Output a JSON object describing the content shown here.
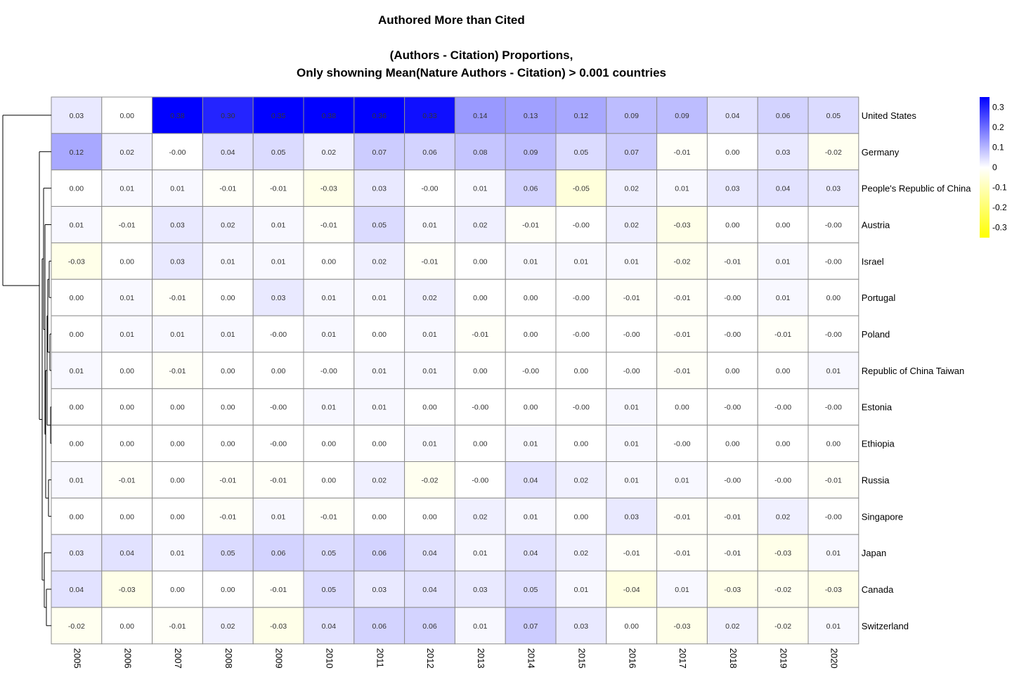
{
  "titles": {
    "main": "Authored More than Cited",
    "subtitle_line1": "(Authors - Citation) Proportions,",
    "subtitle_line2": "Only showning Mean(Nature Authors - Citation) > 0.001 countries"
  },
  "colors": {
    "high": "#0000ff",
    "mid": "#ffffff",
    "low": "#ffff00",
    "grid": "#8c8c8c",
    "dendrogram": "#000000"
  },
  "chart_data": {
    "type": "heatmap",
    "title": "Authored More than Cited",
    "subtitle": "(Authors - Citation) Proportions, Only showning Mean(Nature Authors - Citation) > 0.001 countries",
    "columns": [
      "2005",
      "2006",
      "2007",
      "2008",
      "2009",
      "2010",
      "2011",
      "2012",
      "2013",
      "2014",
      "2015",
      "2016",
      "2017",
      "2018",
      "2019",
      "2020"
    ],
    "rows": [
      "United States",
      "Germany",
      "People's Republic of China",
      "Austria",
      "Israel",
      "Portugal",
      "Poland",
      "Republic of China Taiwan",
      "Estonia",
      "Ethiopia",
      "Russia",
      "Singapore",
      "Japan",
      "Canada",
      "Switzerland"
    ],
    "values": [
      [
        0.03,
        0.0,
        0.38,
        0.3,
        0.35,
        0.38,
        0.36,
        0.33,
        0.14,
        0.13,
        0.12,
        0.09,
        0.09,
        0.04,
        0.06,
        0.05
      ],
      [
        0.12,
        0.02,
        -0.0,
        0.04,
        0.05,
        0.02,
        0.07,
        0.06,
        0.08,
        0.09,
        0.05,
        0.07,
        -0.01,
        0.0,
        0.03,
        -0.02
      ],
      [
        0.0,
        0.01,
        0.01,
        -0.01,
        -0.01,
        -0.03,
        0.03,
        -0.0,
        0.01,
        0.06,
        -0.05,
        0.02,
        0.01,
        0.03,
        0.04,
        0.03
      ],
      [
        0.01,
        -0.01,
        0.03,
        0.02,
        0.01,
        -0.01,
        0.05,
        0.01,
        0.02,
        -0.01,
        -0.0,
        0.02,
        -0.03,
        0.0,
        0.0,
        -0.0
      ],
      [
        -0.03,
        0.0,
        0.03,
        0.01,
        0.01,
        0.0,
        0.02,
        -0.01,
        0.0,
        0.01,
        0.01,
        0.01,
        -0.02,
        -0.01,
        0.01,
        -0.0
      ],
      [
        0.0,
        0.01,
        -0.01,
        0.0,
        0.03,
        0.01,
        0.01,
        0.02,
        0.0,
        0.0,
        -0.0,
        -0.01,
        -0.01,
        -0.0,
        0.01,
        0.0
      ],
      [
        0.0,
        0.01,
        0.01,
        0.01,
        -0.0,
        0.01,
        0.0,
        0.01,
        -0.01,
        0.0,
        -0.0,
        -0.0,
        -0.01,
        -0.0,
        -0.01,
        -0.0
      ],
      [
        0.01,
        0.0,
        -0.01,
        0.0,
        0.0,
        -0.0,
        0.01,
        0.01,
        0.0,
        -0.0,
        0.0,
        -0.0,
        -0.01,
        0.0,
        0.0,
        0.01
      ],
      [
        0.0,
        0.0,
        0.0,
        0.0,
        -0.0,
        0.01,
        0.01,
        0.0,
        -0.0,
        0.0,
        -0.0,
        0.01,
        0.0,
        -0.0,
        -0.0,
        -0.0
      ],
      [
        0.0,
        0.0,
        0.0,
        0.0,
        -0.0,
        0.0,
        0.0,
        0.01,
        0.0,
        0.01,
        0.0,
        0.01,
        -0.0,
        0.0,
        0.0,
        0.0
      ],
      [
        0.01,
        -0.01,
        0.0,
        -0.01,
        -0.01,
        0.0,
        0.02,
        -0.02,
        -0.0,
        0.04,
        0.02,
        0.01,
        0.01,
        -0.0,
        -0.0,
        -0.01
      ],
      [
        0.0,
        0.0,
        0.0,
        -0.01,
        0.01,
        -0.01,
        0.0,
        0.0,
        0.02,
        0.01,
        0.0,
        0.03,
        -0.01,
        -0.01,
        0.02,
        -0.0
      ],
      [
        0.03,
        0.04,
        0.01,
        0.05,
        0.06,
        0.05,
        0.06,
        0.04,
        0.01,
        0.04,
        0.02,
        -0.01,
        -0.01,
        -0.01,
        -0.03,
        0.01
      ],
      [
        0.04,
        -0.03,
        0.0,
        0.0,
        -0.01,
        0.05,
        0.03,
        0.04,
        0.03,
        0.05,
        0.01,
        -0.04,
        0.01,
        -0.03,
        -0.02,
        -0.03
      ],
      [
        -0.02,
        0.0,
        -0.01,
        0.02,
        -0.03,
        0.04,
        0.06,
        0.06,
        0.01,
        0.07,
        0.03,
        0.0,
        -0.03,
        0.02,
        -0.02,
        0.01
      ]
    ],
    "color_range": [
      -0.35,
      0.35
    ],
    "legend": {
      "ticks": [
        0.3,
        0.2,
        0.1,
        0,
        -0.1,
        -0.2,
        -0.3
      ],
      "tick_labels": [
        "0.3",
        "0.2",
        "0.1",
        "0",
        "-0.1",
        "-0.2",
        "-0.3"
      ],
      "placement": "right"
    },
    "row_dendrogram": true,
    "column_labels_rotated": true,
    "grid": true
  }
}
